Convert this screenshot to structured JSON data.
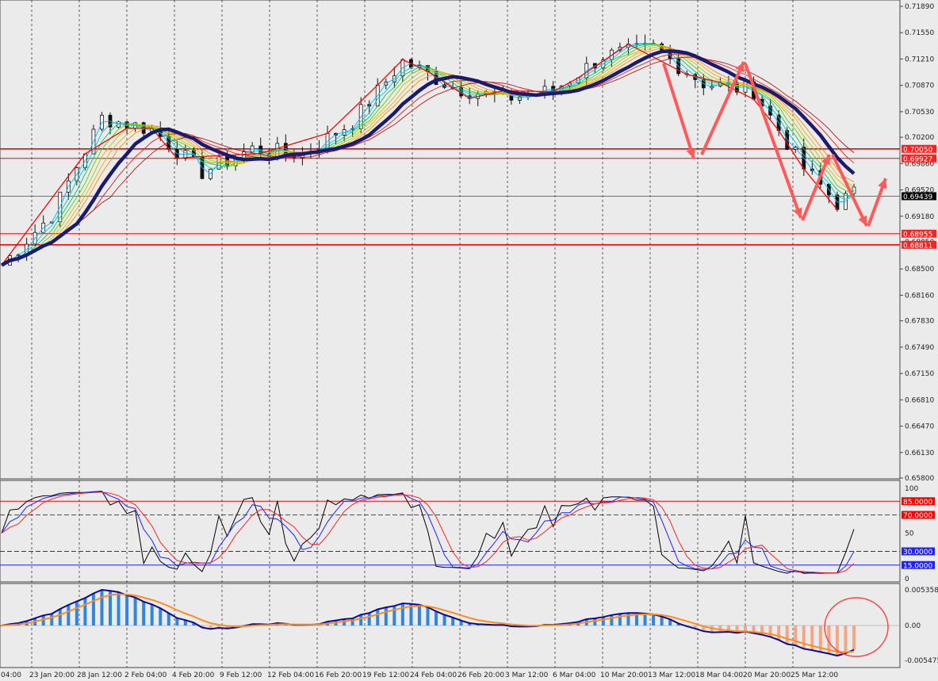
{
  "chart_data": {
    "type": "line",
    "main": {
      "series": [
        {
          "x": [
            0,
            6,
            12,
            18,
            24,
            30,
            36,
            42,
            48,
            54,
            60,
            66,
            72,
            78,
            84,
            90,
            96,
            100,
            102
          ],
          "y": [
            0.6855,
            0.692,
            0.7045,
            0.703,
            0.6975,
            0.7005,
            0.6998,
            0.704,
            0.7118,
            0.7085,
            0.707,
            0.708,
            0.7125,
            0.7135,
            0.709,
            0.708,
            0.698,
            0.6935,
            0.6947
          ]
        }
      ],
      "y_ticks": [
        "0.71890",
        "0.71550",
        "0.71210",
        "0.70870",
        "0.70530",
        "0.70200",
        "0.69860",
        "0.69520",
        "0.69180",
        "0.68850",
        "0.68500",
        "0.68160",
        "0.67830",
        "0.67490",
        "0.67150",
        "0.66810",
        "0.66470",
        "0.66130",
        "0.65800"
      ],
      "ylim": [
        0.658,
        0.7189
      ],
      "price_lines": [
        {
          "label": "0.70050",
          "value": 0.7005,
          "color": "#ff0000"
        },
        {
          "label": "0.69927",
          "value": 0.69927,
          "color": "#ff0000"
        },
        {
          "label": "0.69439",
          "value": 0.69439,
          "color": "#4a70d0"
        },
        {
          "label": "0.68955",
          "value": 0.68955,
          "color": "#ff0000"
        },
        {
          "label": "0.68811",
          "value": 0.68811,
          "color": "#ff0000"
        }
      ]
    },
    "stochastic": {
      "levels": [
        {
          "label": "85.0000",
          "value": 85,
          "color": "#ff0000"
        },
        {
          "label": "70.0000",
          "value": 70,
          "color": "#ff0000"
        },
        {
          "label": "30.0000",
          "value": 30,
          "color": "#2020ff"
        },
        {
          "label": "15.0000",
          "value": 15,
          "color": "#2020ff"
        }
      ],
      "y_ticks": [
        "100",
        "50",
        "0"
      ]
    },
    "macd": {
      "y_ticks": [
        "0.0053585",
        "0.00",
        "-0.005475"
      ]
    },
    "x_labels": [
      "04:00",
      "23 Jan 20:00",
      "28 Jan 12:00",
      "2 Feb 04:00",
      "4 Feb 20:00",
      "9 Feb 12:00",
      "12 Feb 04:00",
      "16 Feb 20:00",
      "19 Feb 12:00",
      "24 Feb 04:00",
      "26 Feb 20:00",
      "3 Mar 12:00",
      "6 Mar 04:00",
      "10 Mar 20:00",
      "13 Mar 12:00",
      "18 Mar 04:00",
      "20 Mar 20:00",
      "25 Mar 12:00"
    ]
  }
}
